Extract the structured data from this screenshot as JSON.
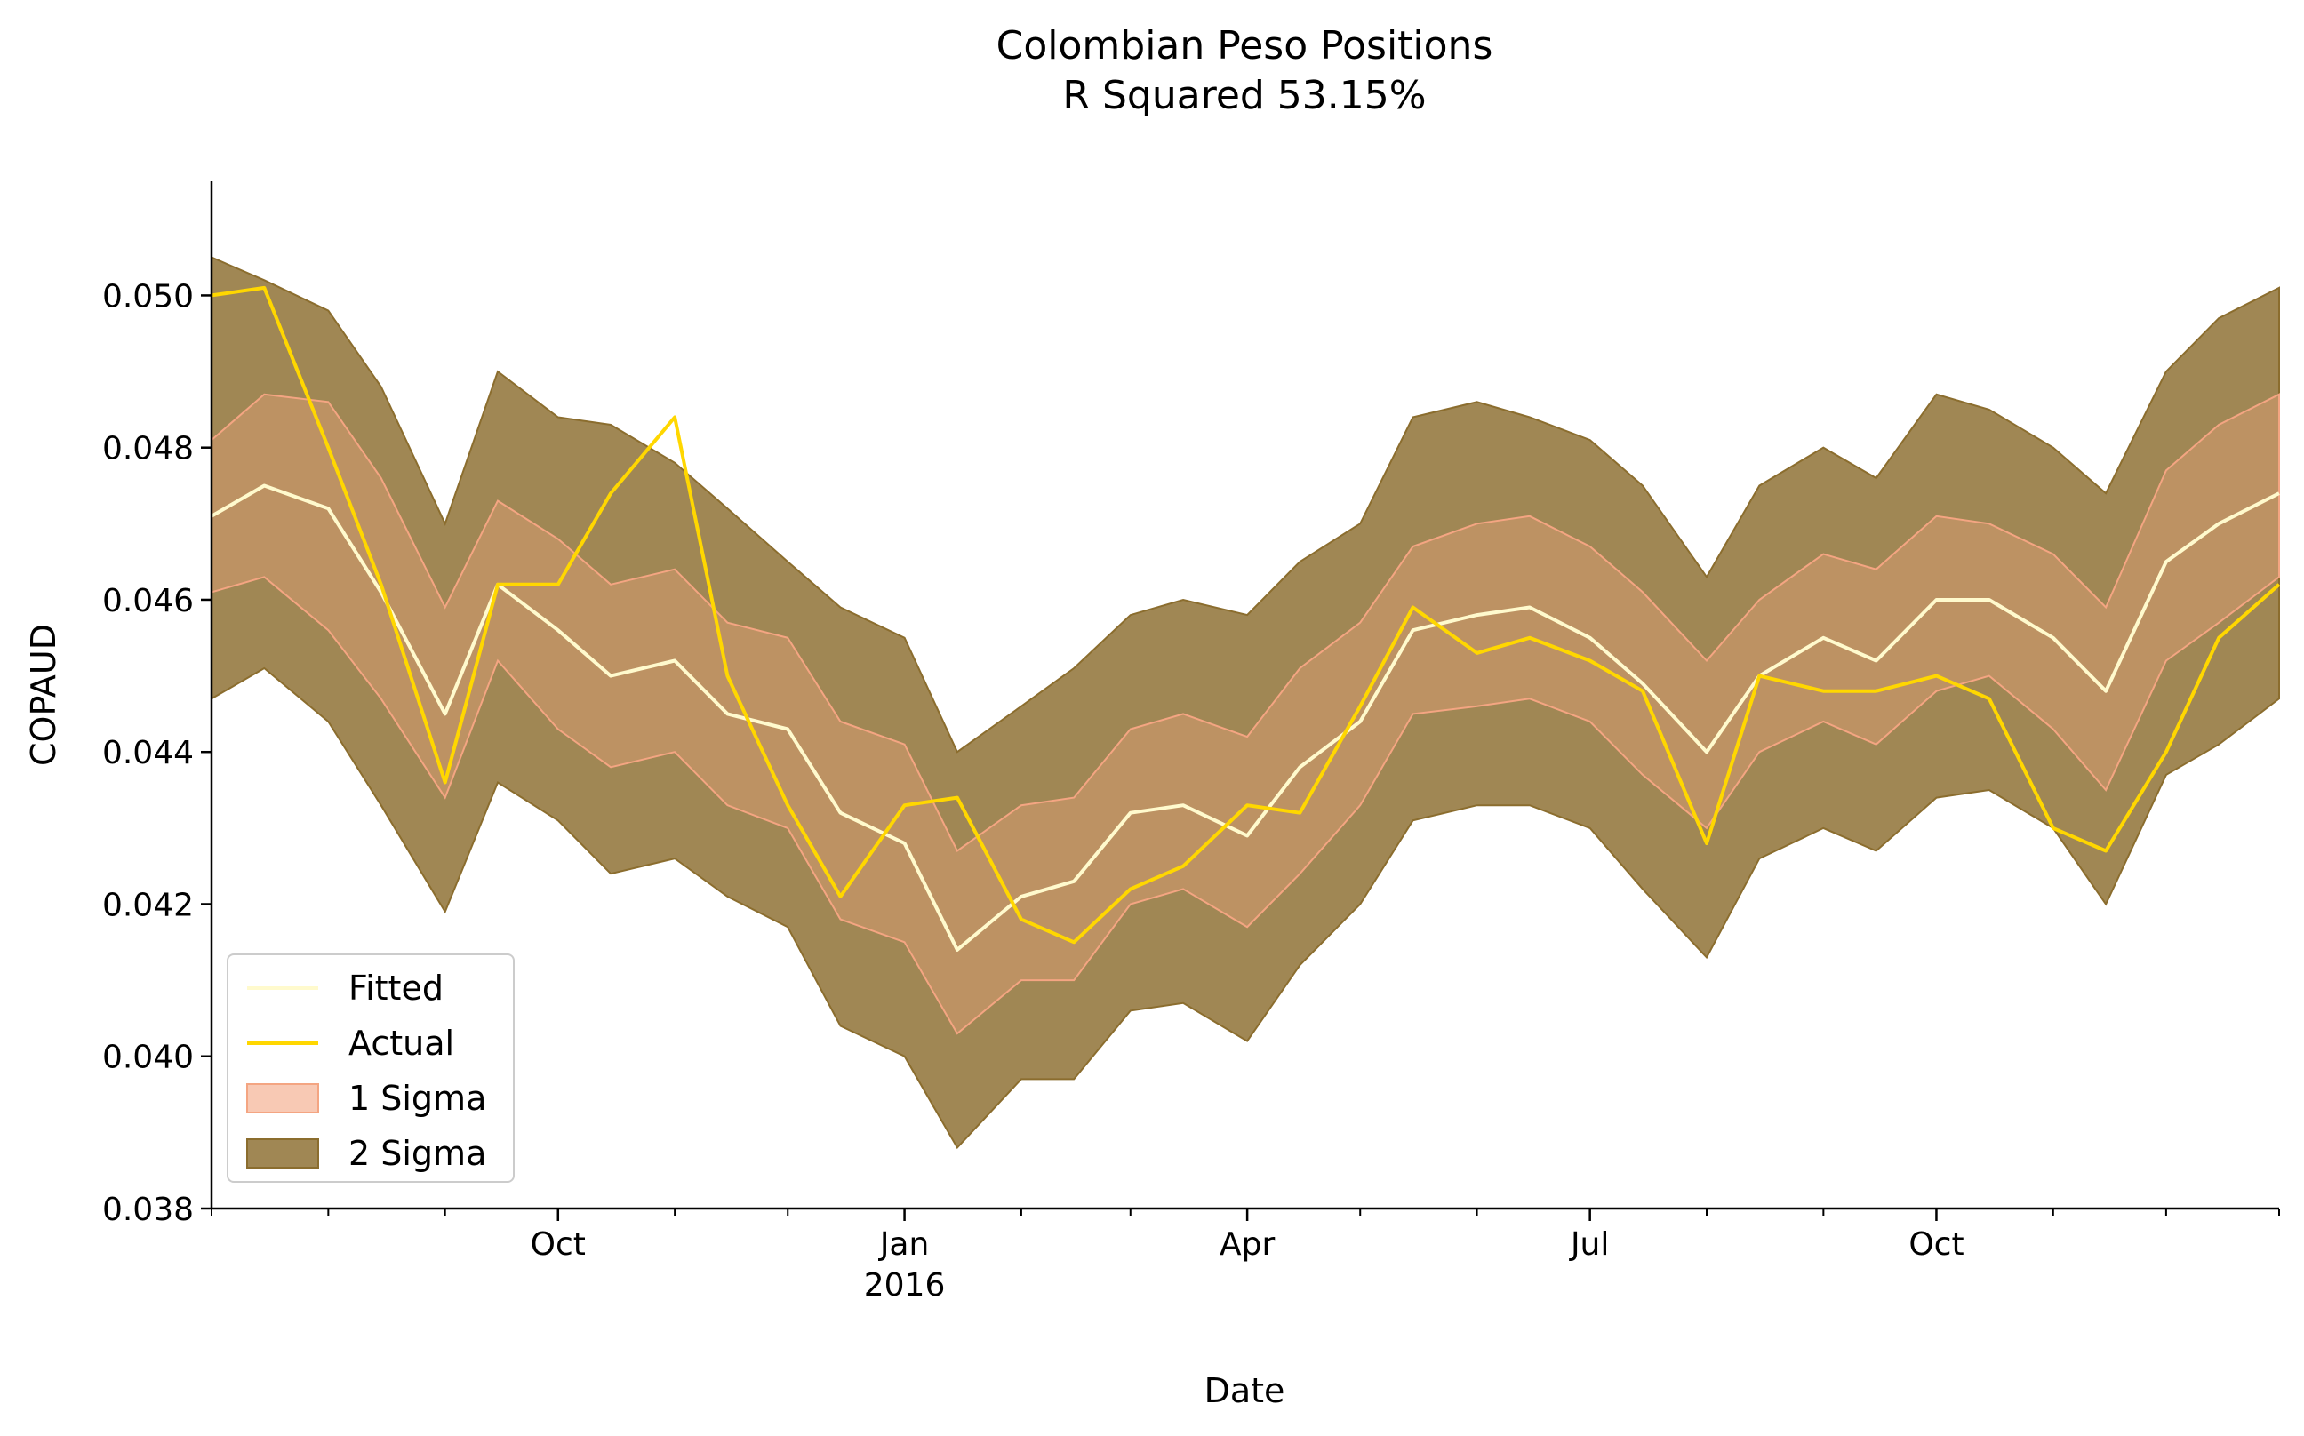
{
  "chart_data": {
    "type": "line",
    "title": "Colombian Peso Positions",
    "subtitle": "R Squared 53.15%",
    "xlabel": "Date",
    "ylabel": "COPAUD",
    "xlim": [
      "2015-07-01",
      "2016-12-31"
    ],
    "ylim": [
      0.038,
      0.0515
    ],
    "grid": false,
    "legend_position": "lower-left",
    "y_ticks": [
      {
        "value": 0.038,
        "label": "0.038"
      },
      {
        "value": 0.04,
        "label": "0.040"
      },
      {
        "value": 0.042,
        "label": "0.042"
      },
      {
        "value": 0.044,
        "label": "0.044"
      },
      {
        "value": 0.046,
        "label": "0.046"
      },
      {
        "value": 0.048,
        "label": "0.048"
      },
      {
        "value": 0.05,
        "label": "0.050"
      }
    ],
    "x_major_ticks": [
      {
        "date": "2015-10-01",
        "label": "Oct",
        "sublabel": ""
      },
      {
        "date": "2016-01-01",
        "label": "Jan",
        "sublabel": "2016"
      },
      {
        "date": "2016-04-01",
        "label": "Apr",
        "sublabel": ""
      },
      {
        "date": "2016-07-01",
        "label": "Jul",
        "sublabel": ""
      },
      {
        "date": "2016-10-01",
        "label": "Oct",
        "sublabel": ""
      }
    ],
    "x_minor_ticks": [
      "2015-07-01",
      "2015-08-01",
      "2015-09-01",
      "2015-11-01",
      "2015-12-01",
      "2016-02-01",
      "2016-03-01",
      "2016-05-01",
      "2016-06-01",
      "2016-08-01",
      "2016-09-01",
      "2016-11-01",
      "2016-12-01",
      "2016-12-31"
    ],
    "x": [
      "2015-07-01",
      "2015-07-15",
      "2015-08-01",
      "2015-08-15",
      "2015-09-01",
      "2015-09-15",
      "2015-10-01",
      "2015-10-15",
      "2015-11-01",
      "2015-11-15",
      "2015-12-01",
      "2015-12-15",
      "2016-01-01",
      "2016-01-15",
      "2016-02-01",
      "2016-02-15",
      "2016-03-01",
      "2016-03-15",
      "2016-04-01",
      "2016-04-15",
      "2016-05-01",
      "2016-05-15",
      "2016-06-01",
      "2016-06-15",
      "2016-07-01",
      "2016-07-15",
      "2016-08-01",
      "2016-08-15",
      "2016-09-01",
      "2016-09-15",
      "2016-10-01",
      "2016-10-15",
      "2016-11-01",
      "2016-11-15",
      "2016-12-01",
      "2016-12-15",
      "2016-12-31"
    ],
    "series": [
      {
        "name": "Fitted",
        "color": "#fffacd",
        "values": [
          0.0471,
          0.0475,
          0.0472,
          0.0461,
          0.0445,
          0.0462,
          0.0456,
          0.045,
          0.0452,
          0.0445,
          0.0443,
          0.0432,
          0.0428,
          0.0414,
          0.0421,
          0.0423,
          0.0432,
          0.0433,
          0.0429,
          0.0438,
          0.0444,
          0.0456,
          0.0458,
          0.0459,
          0.0455,
          0.0449,
          0.044,
          0.045,
          0.0455,
          0.0452,
          0.046,
          0.046,
          0.0455,
          0.0448,
          0.0465,
          0.047,
          0.0474
        ]
      },
      {
        "name": "Actual",
        "color": "#ffd700",
        "values": [
          0.05,
          0.0501,
          0.048,
          0.0462,
          0.0436,
          0.0462,
          0.0462,
          0.0474,
          0.0484,
          0.045,
          0.0433,
          0.0421,
          0.0433,
          0.0434,
          0.0418,
          0.0415,
          0.0422,
          0.0425,
          0.0433,
          0.0432,
          0.0446,
          0.0459,
          0.0453,
          0.0455,
          0.0452,
          0.0448,
          0.0428,
          0.045,
          0.0448,
          0.0448,
          0.045,
          0.0447,
          0.043,
          0.0427,
          0.044,
          0.0455,
          0.0462
        ]
      }
    ],
    "bands": [
      {
        "name": "1 Sigma",
        "color": "#f4a582",
        "lower": [
          0.0461,
          0.0463,
          0.0456,
          0.0447,
          0.0434,
          0.0452,
          0.0443,
          0.0438,
          0.044,
          0.0433,
          0.043,
          0.0418,
          0.0415,
          0.0403,
          0.041,
          0.041,
          0.042,
          0.0422,
          0.0417,
          0.0424,
          0.0433,
          0.0445,
          0.0446,
          0.0447,
          0.0444,
          0.0437,
          0.043,
          0.044,
          0.0444,
          0.0441,
          0.0448,
          0.045,
          0.0443,
          0.0435,
          0.0452,
          0.0457,
          0.0463
        ],
        "upper": [
          0.0481,
          0.0487,
          0.0486,
          0.0476,
          0.0459,
          0.0473,
          0.0468,
          0.0462,
          0.0464,
          0.0457,
          0.0455,
          0.0444,
          0.0441,
          0.0427,
          0.0433,
          0.0434,
          0.0443,
          0.0445,
          0.0442,
          0.0451,
          0.0457,
          0.0467,
          0.047,
          0.0471,
          0.0467,
          0.0461,
          0.0452,
          0.046,
          0.0466,
          0.0464,
          0.0471,
          0.047,
          0.0466,
          0.0459,
          0.0477,
          0.0483,
          0.0487
        ]
      },
      {
        "name": "2 Sigma",
        "color": "#8b6d2e",
        "lower": [
          0.0447,
          0.0451,
          0.0444,
          0.0433,
          0.0419,
          0.0436,
          0.0431,
          0.0424,
          0.0426,
          0.0421,
          0.0417,
          0.0404,
          0.04,
          0.0388,
          0.0397,
          0.0397,
          0.0406,
          0.0407,
          0.0402,
          0.0412,
          0.042,
          0.0431,
          0.0433,
          0.0433,
          0.043,
          0.0422,
          0.0413,
          0.0426,
          0.043,
          0.0427,
          0.0434,
          0.0435,
          0.043,
          0.042,
          0.0437,
          0.0441,
          0.0447
        ],
        "upper": [
          0.0505,
          0.0502,
          0.0498,
          0.0488,
          0.047,
          0.049,
          0.0484,
          0.0483,
          0.0478,
          0.0472,
          0.0465,
          0.0459,
          0.0455,
          0.044,
          0.0446,
          0.0451,
          0.0458,
          0.046,
          0.0458,
          0.0465,
          0.047,
          0.0484,
          0.0486,
          0.0484,
          0.0481,
          0.0475,
          0.0463,
          0.0475,
          0.048,
          0.0476,
          0.0487,
          0.0485,
          0.048,
          0.0474,
          0.049,
          0.0497,
          0.0501
        ]
      }
    ],
    "legend": [
      "Fitted",
      "Actual",
      "1 Sigma",
      "2 Sigma"
    ]
  }
}
